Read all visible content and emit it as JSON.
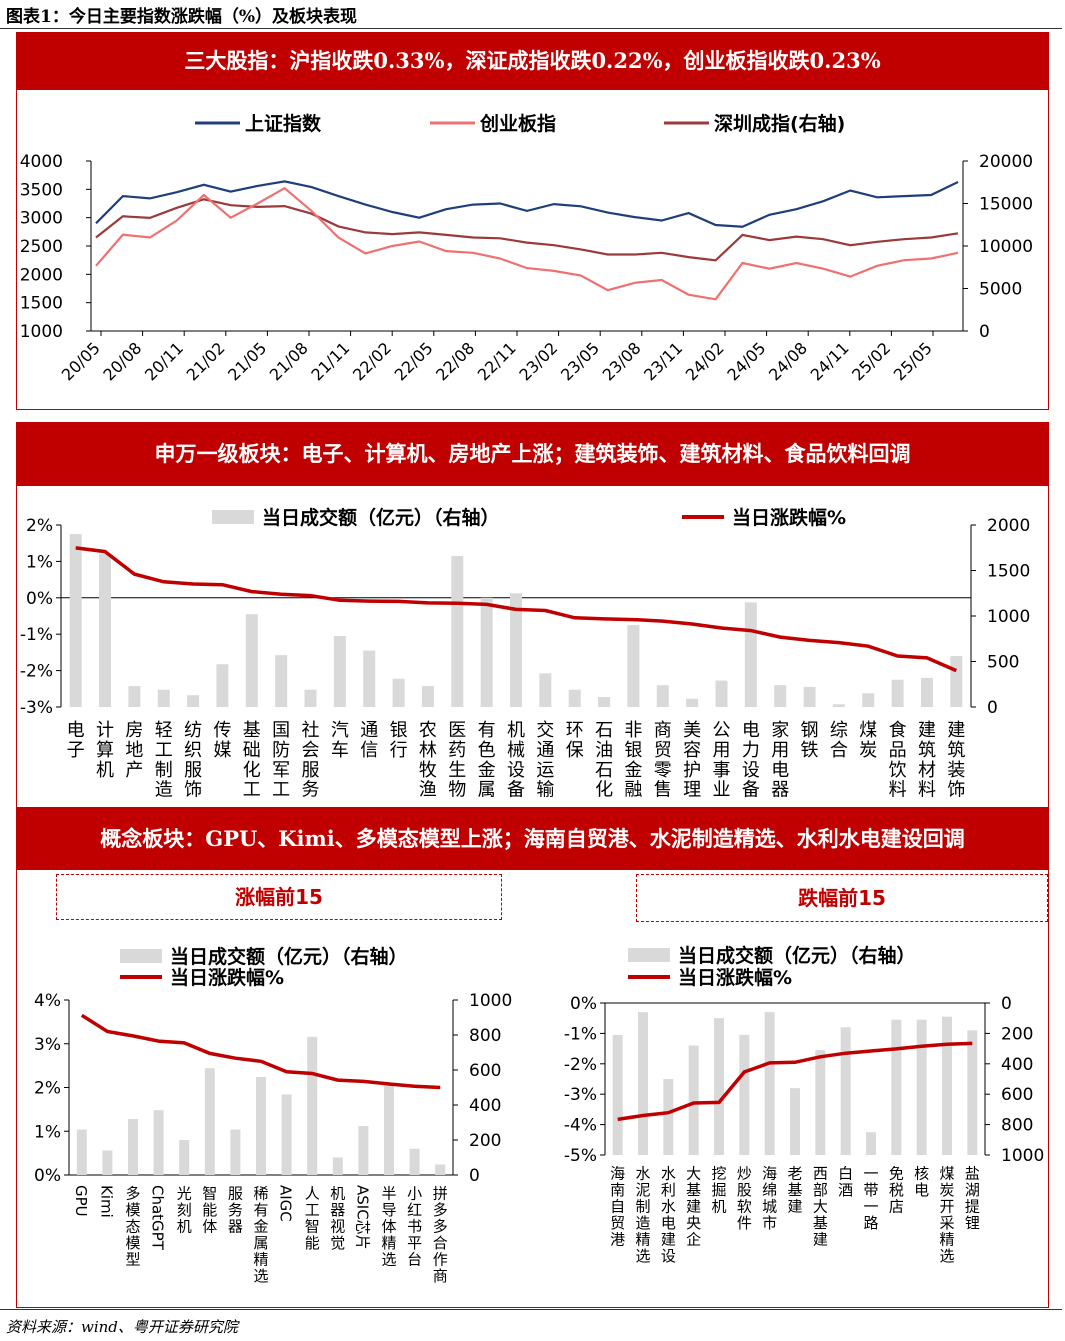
{
  "header": {
    "figure_title": "图表1：今日主要指数涨跌幅（%）及板块表现",
    "section1_banner": "三大股指：沪指收跌0.33%，深证成指收跌0.22%，创业板指收跌0.23%",
    "section2_banner": "申万一级板块：电子、计算机、房地产上涨；建筑装饰、建筑材料、食品饮料回调",
    "section3_banner": "概念板块：GPU、Kimi、多模态模型上涨；海南自贸港、水泥制造精选、水利水电建设回调",
    "top15_label": "涨幅前15",
    "bottom15_label": "跌幅前15"
  },
  "footer": {
    "source": "资料来源：wind、粤开证券研究院"
  },
  "colors": {
    "shanghai": "#1f3f7a",
    "chinext": "#f07070",
    "shenzhen": "#9b3a3a",
    "bar": "#d9d9d9",
    "pct": "#c00000",
    "banner": "#c00000"
  },
  "chart_data": [
    {
      "type": "line",
      "x_tick_labels": [
        "20/05",
        "20/08",
        "20/11",
        "21/02",
        "21/05",
        "21/08",
        "21/11",
        "22/02",
        "22/05",
        "22/08",
        "22/11",
        "23/02",
        "23/05",
        "23/08",
        "23/11",
        "24/02",
        "24/05",
        "24/08",
        "24/11",
        "25/02",
        "25/05"
      ],
      "ylim_left": [
        1000,
        4000
      ],
      "yticks_left": [
        "4000",
        "3500",
        "3000",
        "2500",
        "2000",
        "1500",
        "1000"
      ],
      "ylim_right": [
        0,
        20000
      ],
      "yticks_right": [
        "20000",
        "15000",
        "10000",
        "5000",
        "0"
      ],
      "series": [
        {
          "name": "上证指数",
          "axis": "left",
          "values": [
            2900,
            3380,
            3340,
            3450,
            3580,
            3460,
            3560,
            3640,
            3540,
            3380,
            3230,
            3100,
            3000,
            3150,
            3230,
            3250,
            3120,
            3240,
            3200,
            3090,
            3010,
            2950,
            3080,
            2870,
            2840,
            3050,
            3150,
            3290,
            3480,
            3360,
            3380,
            3400,
            3630
          ]
        },
        {
          "name": "创业板指",
          "axis": "left",
          "values": [
            2150,
            2700,
            2650,
            2950,
            3400,
            3000,
            3250,
            3520,
            3120,
            2650,
            2370,
            2500,
            2580,
            2410,
            2380,
            2280,
            2110,
            2060,
            1980,
            1720,
            1850,
            1900,
            1640,
            1560,
            2200,
            2100,
            2200,
            2100,
            1960,
            2150,
            2250,
            2280,
            2380
          ]
        },
        {
          "name": "深圳成指(右轴)",
          "axis": "right",
          "values": [
            11000,
            13500,
            13300,
            14500,
            15500,
            14800,
            14600,
            14700,
            13800,
            12300,
            11600,
            11400,
            11600,
            11300,
            11000,
            10900,
            10400,
            10100,
            9600,
            9000,
            9000,
            9200,
            8700,
            8300,
            11300,
            10700,
            11100,
            10800,
            10100,
            10500,
            10800,
            11000,
            11500
          ]
        }
      ]
    },
    {
      "type": "bar",
      "categories": [
        "电子",
        "计算机",
        "房地产",
        "轻工制造",
        "纺织服饰",
        "传媒",
        "基础化工",
        "国防军工",
        "社会服务",
        "汽车",
        "通信",
        "银行",
        "农林牧渔",
        "医药生物",
        "有色金属",
        "机械设备",
        "交通运输",
        "环保",
        "石油石化",
        "非银金融",
        "商贸零售",
        "美容护理",
        "公用事业",
        "电力设备",
        "家用电器",
        "钢铁",
        "综合",
        "煤炭",
        "食品饮料",
        "建筑材料",
        "建筑装饰"
      ],
      "ylim_left": [
        -3,
        2
      ],
      "yticks_left": [
        "2%",
        "1%",
        "0%",
        "-1%",
        "-2%",
        "-3%"
      ],
      "ylim_right": [
        0,
        2000
      ],
      "yticks_right": [
        "2000",
        "1500",
        "1000",
        "500",
        "0"
      ],
      "series": [
        {
          "name": "当日成交额（亿元）（右轴）",
          "kind": "bar",
          "axis": "right",
          "values": [
            1900,
            1680,
            230,
            190,
            130,
            470,
            1020,
            570,
            190,
            780,
            620,
            310,
            230,
            1660,
            1200,
            1250,
            370,
            190,
            110,
            900,
            240,
            90,
            290,
            1150,
            240,
            220,
            30,
            150,
            300,
            320,
            560
          ]
        },
        {
          "name": "当日涨跌幅%",
          "kind": "line",
          "axis": "left",
          "values": [
            1.37,
            1.27,
            0.65,
            0.44,
            0.38,
            0.36,
            0.17,
            0.1,
            0.06,
            -0.07,
            -0.09,
            -0.1,
            -0.14,
            -0.15,
            -0.18,
            -0.32,
            -0.35,
            -0.55,
            -0.58,
            -0.6,
            -0.64,
            -0.72,
            -0.83,
            -0.9,
            -1.08,
            -1.17,
            -1.23,
            -1.33,
            -1.6,
            -1.65,
            -2.0
          ]
        }
      ]
    },
    {
      "type": "bar",
      "legend_title": "涨幅前15",
      "categories": [
        "GPU",
        "Kimi",
        "多模态模型",
        "ChatGPT",
        "光刻机",
        "智能体",
        "服务器",
        "稀有金属精选",
        "AIGC",
        "人工智能",
        "机器视觉",
        "ASIC芯片",
        "半导体精选",
        "小红书平台",
        "拼多多合作商"
      ],
      "ylim_left": [
        0,
        4
      ],
      "yticks_left": [
        "4%",
        "3%",
        "2%",
        "1%",
        "0%"
      ],
      "ylim_right": [
        0,
        1000
      ],
      "yticks_right": [
        "1000",
        "800",
        "600",
        "400",
        "200",
        "0"
      ],
      "series": [
        {
          "name": "当日成交额（亿元）（右轴）",
          "kind": "bar",
          "axis": "right",
          "values": [
            260,
            140,
            320,
            370,
            200,
            610,
            260,
            560,
            460,
            790,
            100,
            280,
            510,
            150,
            60
          ]
        },
        {
          "name": "当日涨跌幅%",
          "kind": "line",
          "axis": "left",
          "values": [
            3.65,
            3.28,
            3.18,
            3.06,
            3.02,
            2.78,
            2.67,
            2.6,
            2.36,
            2.32,
            2.17,
            2.14,
            2.08,
            2.03,
            2.0
          ]
        }
      ]
    },
    {
      "type": "bar",
      "legend_title": "跌幅前15",
      "categories": [
        "海南自贸港",
        "水泥制造精选",
        "水利水电建设",
        "大基建央企",
        "挖掘机",
        "炒股软件",
        "海绵城市",
        "老基建",
        "西部大基建",
        "白酒",
        "一带一路",
        "免税店",
        "核电",
        "煤炭开采精选",
        "盐湖提锂"
      ],
      "ylim_left": [
        -5,
        0
      ],
      "yticks_left": [
        "0%",
        "-1%",
        "-2%",
        "-3%",
        "-4%",
        "-5%"
      ],
      "ylim_right": [
        1000,
        0
      ],
      "yticks_right": [
        "0",
        "200",
        "400",
        "600",
        "800",
        "1000"
      ],
      "series": [
        {
          "name": "当日成交额（亿元）（右轴）",
          "kind": "bar",
          "axis": "right",
          "values": [
            210,
            60,
            500,
            280,
            100,
            210,
            60,
            560,
            310,
            160,
            850,
            110,
            110,
            90,
            180
          ]
        },
        {
          "name": "当日涨跌幅%",
          "kind": "line",
          "axis": "left",
          "values": [
            -3.83,
            -3.7,
            -3.61,
            -3.29,
            -3.27,
            -2.27,
            -1.97,
            -1.95,
            -1.77,
            -1.65,
            -1.58,
            -1.51,
            -1.42,
            -1.36,
            -1.33
          ]
        }
      ]
    }
  ]
}
